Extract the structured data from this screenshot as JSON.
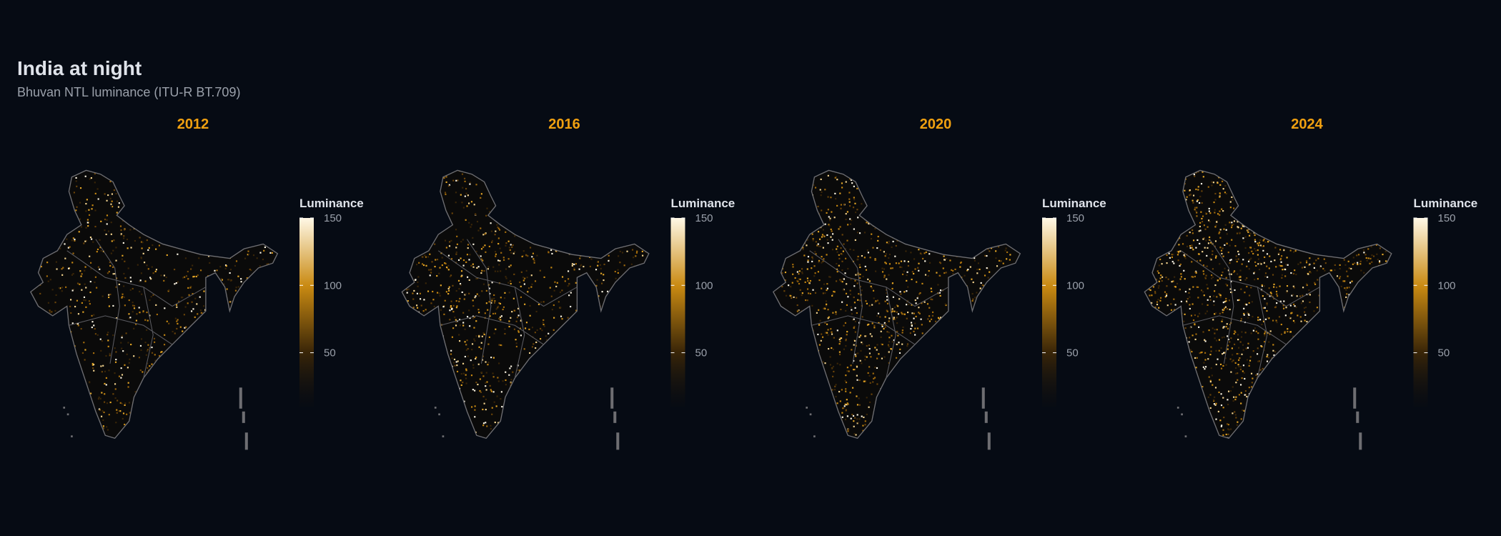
{
  "header": {
    "title": "India at night",
    "subtitle": "Bhuvan NTL luminance (ITU-R BT.709)"
  },
  "panels": [
    {
      "title": "2012",
      "legend": {
        "title": "Luminance",
        "range": [
          10,
          150
        ],
        "ticks": [
          50,
          100,
          150
        ]
      }
    },
    {
      "title": "2016",
      "legend": {
        "title": "Luminance",
        "range": [
          10,
          150
        ],
        "ticks": [
          50,
          100,
          150
        ]
      }
    },
    {
      "title": "2020",
      "legend": {
        "title": "Luminance",
        "range": [
          10,
          150
        ],
        "ticks": [
          50,
          100,
          150
        ]
      }
    },
    {
      "title": "2024",
      "legend": {
        "title": "Luminance",
        "range": [
          10,
          150
        ],
        "ticks": [
          50,
          100,
          150
        ]
      }
    }
  ]
}
